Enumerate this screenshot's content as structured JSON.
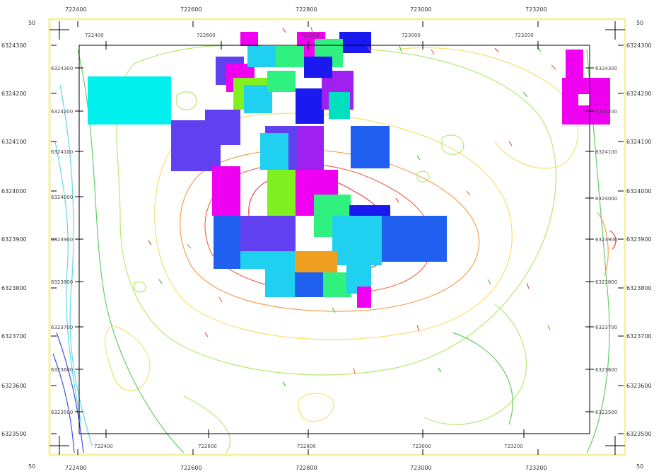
{
  "map": {
    "corner_labels": {
      "top_left": "50",
      "top_right": "50",
      "bottom_left": "50",
      "bottom_right": "50"
    },
    "x_labels": [
      "722400",
      "722600",
      "722800",
      "723000",
      "723200"
    ],
    "y_labels": [
      "6324300",
      "6324200",
      "6324100",
      "6324000",
      "6323900",
      "6323800",
      "6323700",
      "6323600",
      "6323500"
    ],
    "colors": {
      "frame": "#000000",
      "border_yellow": "#f5f0a0",
      "contour_red": "#f04040",
      "contour_orange": "#f5a050",
      "contour_yellow": "#f7e070",
      "contour_lightgreen": "#b8e870",
      "contour_green": "#60d060",
      "contour_cyan": "#60d8e8",
      "contour_blue": "#4050e0"
    },
    "block_colors": [
      "#00f0f0",
      "#6040f0",
      "#f000f0",
      "#80f020",
      "#1a1af0",
      "#20d0f0",
      "#30f080",
      "#2060f0",
      "#f0a020",
      "#a020f0",
      "#00e0c0"
    ]
  }
}
